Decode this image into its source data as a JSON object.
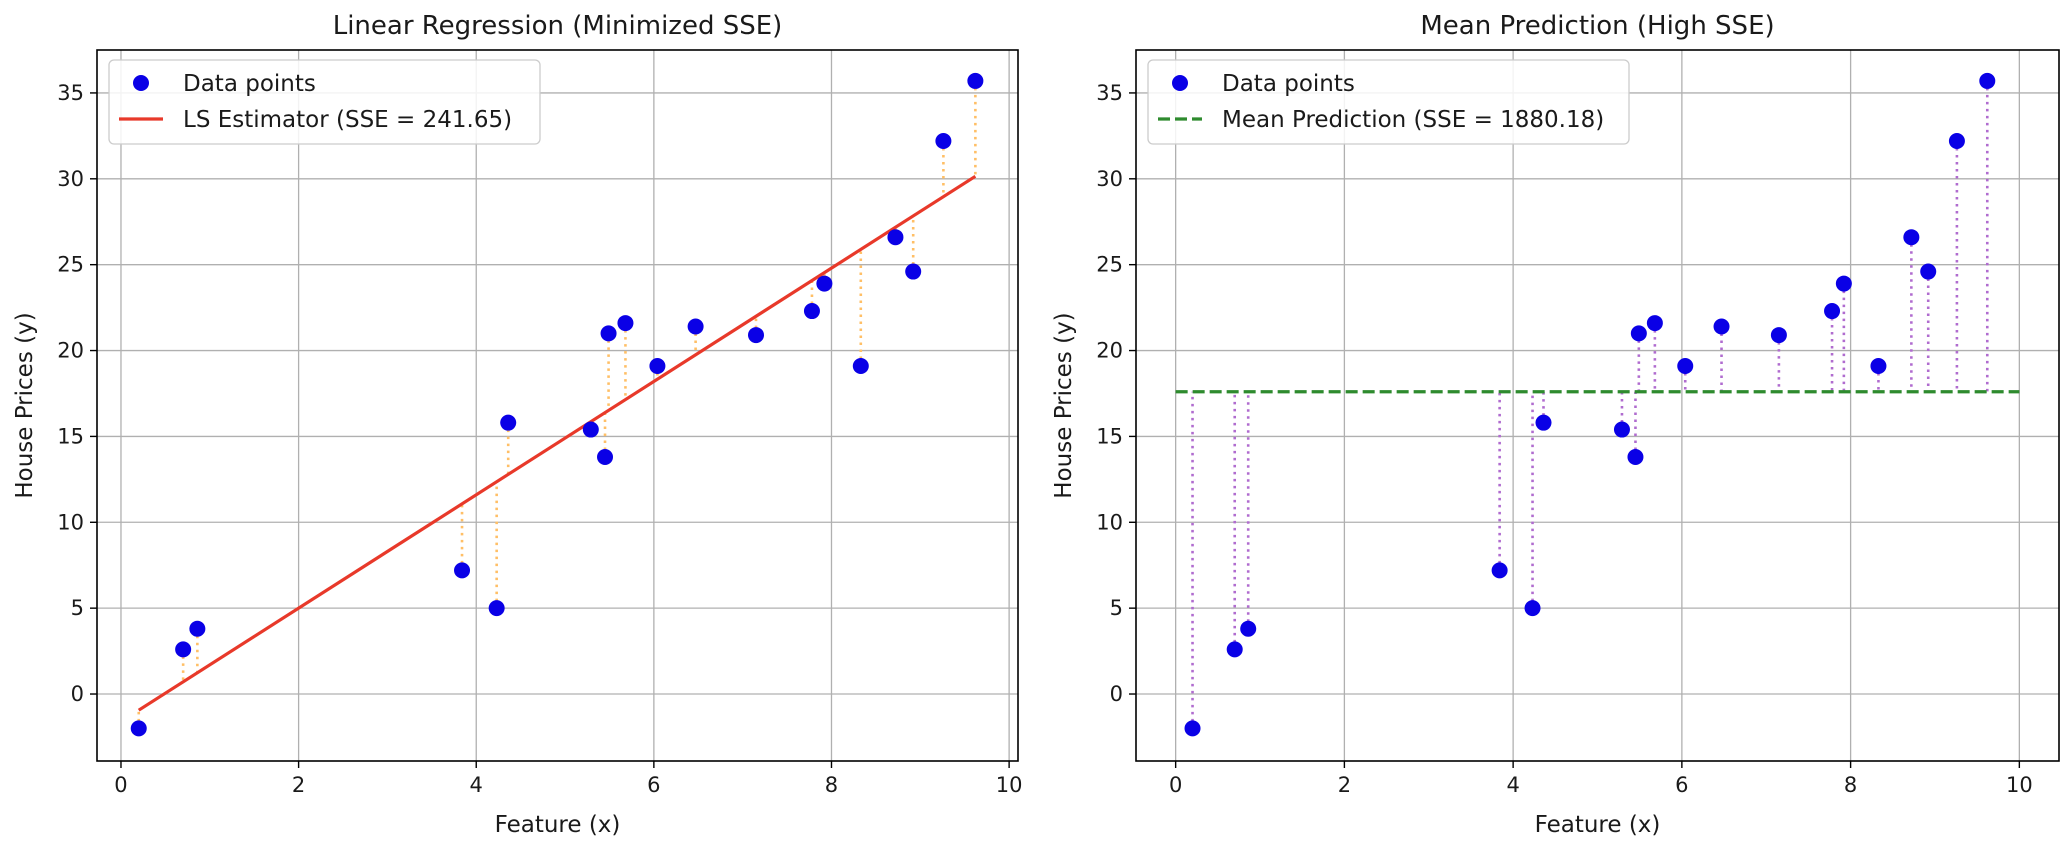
{
  "colors": {
    "points": "#0a00e6",
    "ls_line": "#e8392a",
    "ls_residual": "#ffbf66",
    "mean_line": "#2e8b2e",
    "mean_residual": "#b06ccf",
    "grid": "#b0b0b0"
  },
  "chart_data": [
    {
      "type": "scatter",
      "title": "Linear Regression (Minimized SSE)",
      "xlabel": "Feature (x)",
      "ylabel": "House Prices (y)",
      "xlim": [
        -0.27,
        10.1
      ],
      "ylim": [
        -3.9,
        37.5
      ],
      "xticks": [
        0,
        2,
        4,
        6,
        8,
        10
      ],
      "yticks": [
        0,
        5,
        10,
        15,
        20,
        25,
        30,
        35
      ],
      "grid": true,
      "legend_position": "top-left",
      "points_label": "Data points",
      "fit_label": "LS Estimator (SSE = 241.65)",
      "fit": {
        "kind": "line",
        "slope": 3.3,
        "intercept": -1.6,
        "x_range": [
          0.2,
          9.62
        ]
      },
      "x": [
        0.2,
        0.7,
        0.86,
        3.84,
        4.23,
        4.36,
        5.29,
        5.45,
        5.49,
        5.68,
        6.04,
        6.47,
        7.15,
        7.78,
        7.92,
        8.33,
        8.72,
        8.92,
        9.26,
        9.62
      ],
      "y": [
        -2.0,
        2.6,
        3.8,
        7.2,
        5.0,
        15.8,
        15.4,
        13.8,
        21.0,
        21.6,
        19.1,
        21.4,
        20.9,
        22.3,
        23.9,
        19.1,
        26.6,
        24.6,
        32.2,
        35.7
      ]
    },
    {
      "type": "scatter",
      "title": "Mean Prediction (High SSE)",
      "xlabel": "Feature (x)",
      "ylabel": "House Prices (y)",
      "xlim": [
        -0.47,
        10.47
      ],
      "ylim": [
        -3.9,
        37.5
      ],
      "xticks": [
        0,
        2,
        4,
        6,
        8,
        10
      ],
      "yticks": [
        0,
        5,
        10,
        15,
        20,
        25,
        30,
        35
      ],
      "grid": true,
      "legend_position": "top-left",
      "points_label": "Data points",
      "fit_label": "Mean Prediction (SSE = 1880.18)",
      "fit": {
        "kind": "mean",
        "value": 17.6,
        "x_range": [
          0,
          10
        ]
      },
      "x": [
        0.2,
        0.7,
        0.86,
        3.84,
        4.23,
        4.36,
        5.29,
        5.45,
        5.49,
        5.68,
        6.04,
        6.47,
        7.15,
        7.78,
        7.92,
        8.33,
        8.72,
        8.92,
        9.26,
        9.62
      ],
      "y": [
        -2.0,
        2.6,
        3.8,
        7.2,
        5.0,
        15.8,
        15.4,
        13.8,
        21.0,
        21.6,
        19.1,
        21.4,
        20.9,
        22.3,
        23.9,
        19.1,
        26.6,
        24.6,
        32.2,
        35.7
      ]
    }
  ]
}
